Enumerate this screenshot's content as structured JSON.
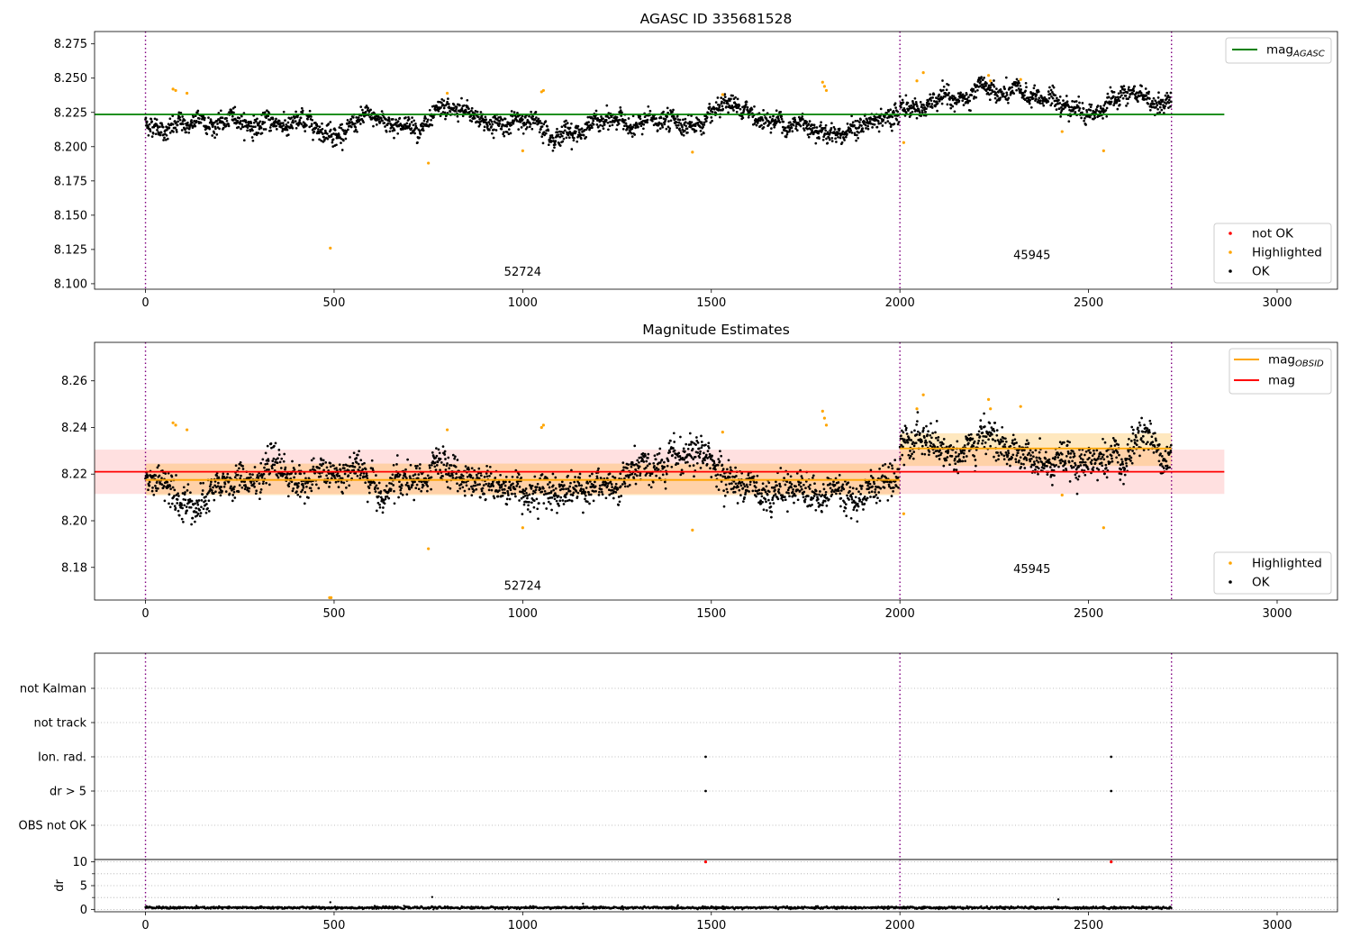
{
  "chart_data": [
    {
      "type": "scatter",
      "title": "AGASC ID 335681528",
      "x_range": [
        -135,
        3160
      ],
      "y_range": [
        8.096,
        8.284
      ],
      "x_ticks": [
        "0",
        "500",
        "1000",
        "1500",
        "2000",
        "2500",
        "3000"
      ],
      "y_ticks": [
        "8.100",
        "8.125",
        "8.150",
        "8.175",
        "8.200",
        "8.225",
        "8.250",
        "8.275"
      ],
      "obsid_boundaries": [
        0,
        2000,
        2720
      ],
      "obsid_labels": [
        {
          "text": "52724",
          "x": 1000,
          "y": 8.106
        },
        {
          "text": "45945",
          "x": 2350,
          "y": 8.118
        }
      ],
      "lines": [
        {
          "name": "mag",
          "sub": "AGASC",
          "color": "#008000",
          "y": 8.2235,
          "x_range": [
            -135,
            2860
          ]
        }
      ],
      "series": [
        {
          "name": "not OK",
          "color": "#ff0000",
          "points": []
        },
        {
          "name": "Highlighted",
          "color": "#ffa500",
          "points": [
            [
              73,
              8.242
            ],
            [
              80,
              8.241
            ],
            [
              110,
              8.239
            ],
            [
              490,
              8.126
            ],
            [
              750,
              8.188
            ],
            [
              800,
              8.239
            ],
            [
              1000,
              8.197
            ],
            [
              1050,
              8.24
            ],
            [
              1055,
              8.241
            ],
            [
              1450,
              8.196
            ],
            [
              1530,
              8.238
            ],
            [
              1795,
              8.247
            ],
            [
              1800,
              8.244
            ],
            [
              1805,
              8.241
            ],
            [
              2010,
              8.203
            ],
            [
              2045,
              8.248
            ],
            [
              2062,
              8.254
            ],
            [
              2235,
              8.252
            ],
            [
              2240,
              8.248
            ],
            [
              2320,
              8.249
            ],
            [
              2430,
              8.211
            ],
            [
              2540,
              8.197
            ]
          ]
        },
        {
          "name": "OK",
          "color": "#000000",
          "points": []
        }
      ],
      "ok_segments": [
        {
          "x0": 0,
          "x1": 1998,
          "base": 8.217,
          "noise": 0.0055
        },
        {
          "x0": 2000,
          "x1": 2720,
          "base": 8.231,
          "noise": 0.0055
        }
      ],
      "legend_lines": [
        {
          "name": "mag",
          "sub": "AGASC"
        }
      ],
      "legend_points": [
        "not OK",
        "Highlighted",
        "OK"
      ]
    },
    {
      "type": "scatter",
      "title": "Magnitude Estimates",
      "x_range": [
        -135,
        3160
      ],
      "y_range": [
        8.166,
        8.2765
      ],
      "x_ticks": [
        "0",
        "500",
        "1000",
        "1500",
        "2000",
        "2500",
        "3000"
      ],
      "y_ticks": [
        "8.18",
        "8.20",
        "8.22",
        "8.24",
        "8.26"
      ],
      "obsid_boundaries": [
        0,
        2000,
        2720
      ],
      "obsid_labels": [
        {
          "text": "52724",
          "x": 1000,
          "y": 8.1705
        },
        {
          "text": "45945",
          "x": 2350,
          "y": 8.1775
        }
      ],
      "bands": [
        {
          "color": "#ff0000",
          "opacity": 0.12,
          "x0": -135,
          "x1": 2860,
          "y0": 8.2115,
          "y1": 8.2305
        },
        {
          "color": "#ffa500",
          "opacity": 0.25,
          "x0": 0,
          "x1": 2000,
          "y0": 8.211,
          "y1": 8.2245
        },
        {
          "color": "#ffa500",
          "opacity": 0.25,
          "x0": 2000,
          "x1": 2720,
          "y0": 8.2235,
          "y1": 8.2375
        }
      ],
      "lines": [
        {
          "name": "mag",
          "sub": "OBSID",
          "color": "#ffa500",
          "y": 8.2175,
          "x_range": [
            0,
            2000
          ]
        },
        {
          "name": "mag",
          "sub": "OBSID",
          "color": "#ffa500",
          "y": 8.231,
          "x_range": [
            2000,
            2720
          ]
        },
        {
          "name": "mag",
          "sub": "",
          "color": "#ff0000",
          "y": 8.221,
          "x_range": [
            -135,
            2860
          ]
        }
      ],
      "series": [
        {
          "name": "Highlighted",
          "color": "#ffa500",
          "points": [
            [
              73,
              8.242
            ],
            [
              80,
              8.241
            ],
            [
              110,
              8.239
            ],
            [
              488,
              8.167
            ],
            [
              492,
              8.167
            ],
            [
              750,
              8.188
            ],
            [
              800,
              8.239
            ],
            [
              1000,
              8.197
            ],
            [
              1050,
              8.24
            ],
            [
              1055,
              8.241
            ],
            [
              1450,
              8.196
            ],
            [
              1530,
              8.238
            ],
            [
              1795,
              8.247
            ],
            [
              1800,
              8.244
            ],
            [
              1805,
              8.241
            ],
            [
              2010,
              8.203
            ],
            [
              2045,
              8.248
            ],
            [
              2062,
              8.254
            ],
            [
              2235,
              8.252
            ],
            [
              2240,
              8.248
            ],
            [
              2320,
              8.249
            ],
            [
              2430,
              8.211
            ],
            [
              2540,
              8.197
            ]
          ]
        },
        {
          "name": "OK",
          "color": "#000000",
          "points": []
        }
      ],
      "ok_segments": [
        {
          "x0": 0,
          "x1": 1998,
          "base": 8.217,
          "noise": 0.0055
        },
        {
          "x0": 2000,
          "x1": 2720,
          "base": 8.231,
          "noise": 0.0055
        }
      ],
      "legend_lines": [
        {
          "name": "mag",
          "sub": "OBSID"
        },
        {
          "name": "mag",
          "sub": ""
        }
      ],
      "legend_points": [
        "Highlighted",
        "OK"
      ]
    },
    {
      "type": "scatter",
      "title": "",
      "x_range": [
        -135,
        3160
      ],
      "y_categories": [
        "not Kalman",
        "not track",
        "Ion. rad.",
        "dr > 5",
        "OBS not OK"
      ],
      "obsid_boundaries": [
        0,
        2000,
        2720
      ],
      "flags": [
        {
          "category": "Ion. rad.",
          "x": [
            1485,
            2560
          ]
        },
        {
          "category": "dr > 5",
          "x": [
            1485,
            2560
          ]
        }
      ]
    },
    {
      "type": "scatter",
      "title": "",
      "ylabel": "dr",
      "x_range": [
        -135,
        3160
      ],
      "y_range": [
        -0.5,
        10.5
      ],
      "x_ticks": [
        "0",
        "500",
        "1000",
        "1500",
        "2000",
        "2500",
        "3000"
      ],
      "y_ticks": [
        "0",
        "5",
        "10"
      ],
      "obsid_boundaries": [
        0,
        2000,
        2720
      ],
      "red_points": [
        [
          1485,
          10
        ],
        [
          2560,
          10
        ]
      ],
      "black_points": [
        [
          490,
          1.5
        ],
        [
          760,
          2.6
        ],
        [
          1160,
          1.2
        ],
        [
          2420,
          2.1
        ]
      ],
      "baseline": {
        "x0": 0,
        "x1": 2720,
        "y": 0.35
      }
    }
  ]
}
